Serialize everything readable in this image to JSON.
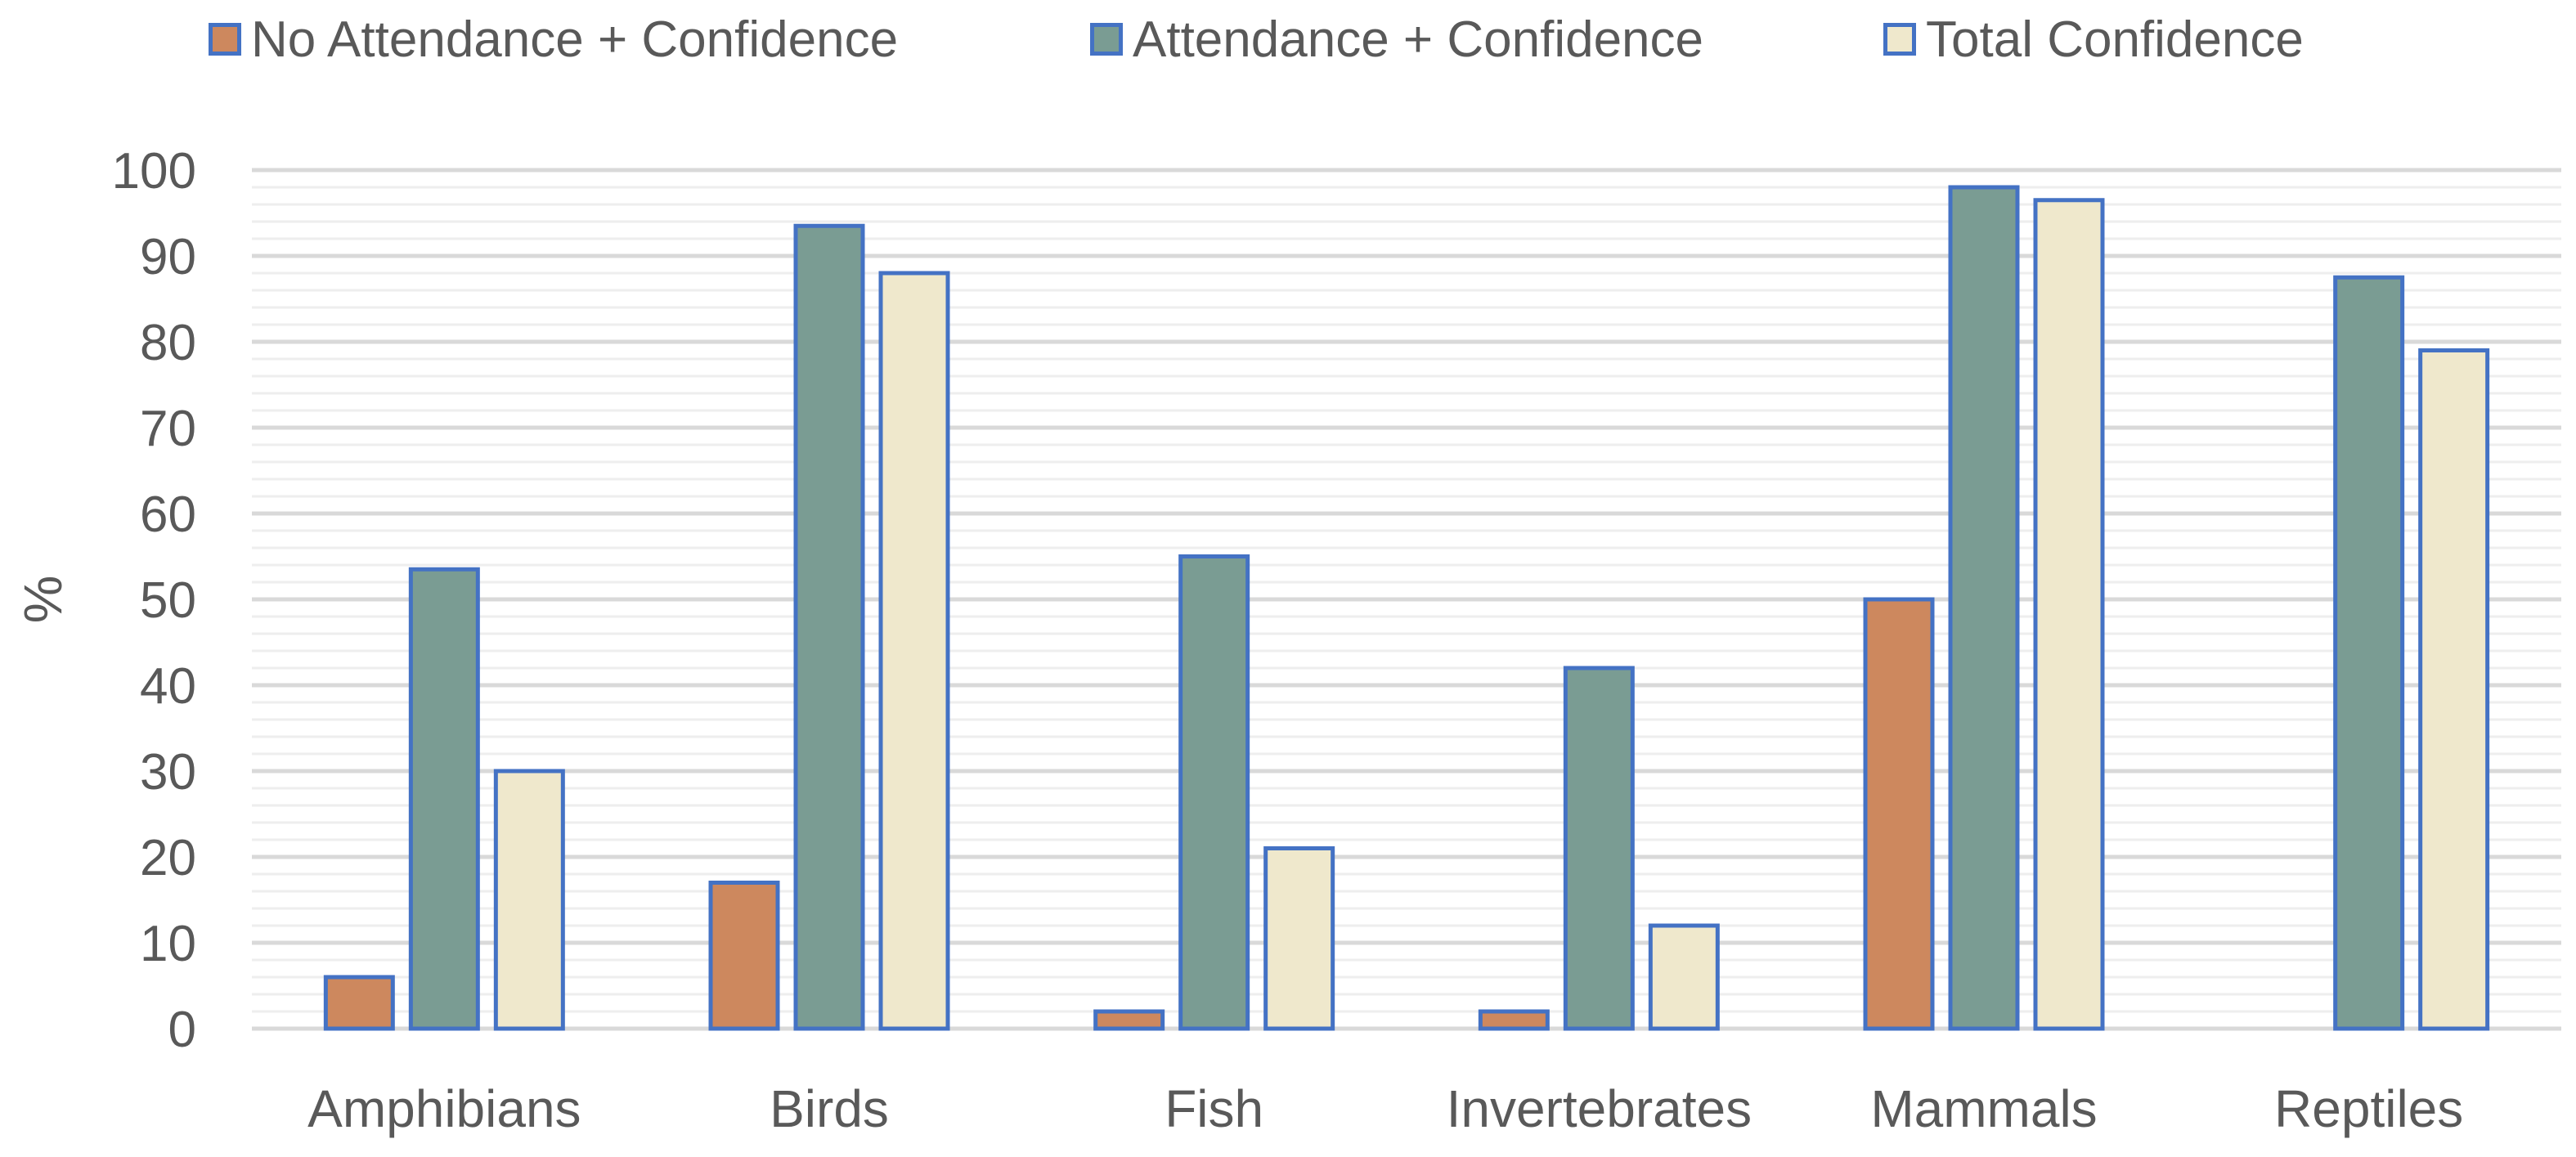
{
  "chart_data": {
    "type": "bar",
    "title": "",
    "xlabel": "",
    "ylabel": "%",
    "ylim": [
      0,
      100
    ],
    "yticks": [
      0,
      10,
      20,
      30,
      40,
      50,
      60,
      70,
      80,
      90,
      100
    ],
    "grid": "major and minor horizontal gridlines",
    "legend_position": "top",
    "categories": [
      "Amphibians",
      "Birds",
      "Fish",
      "Invertebrates",
      "Mammals",
      "Reptiles"
    ],
    "series": [
      {
        "name": "No Attendance + Confidence",
        "color": "#CD885E",
        "values": [
          6,
          17,
          2,
          2,
          50,
          0
        ]
      },
      {
        "name": "Attendance + Confidence",
        "color": "#7A9C93",
        "values": [
          53.5,
          93.5,
          55,
          42,
          98,
          87.5
        ]
      },
      {
        "name": "Total Confidence",
        "color": "#EFE8CC",
        "values": [
          30,
          88,
          21,
          12,
          96.5,
          79
        ]
      }
    ],
    "bar_border_color": "#4472C4"
  }
}
